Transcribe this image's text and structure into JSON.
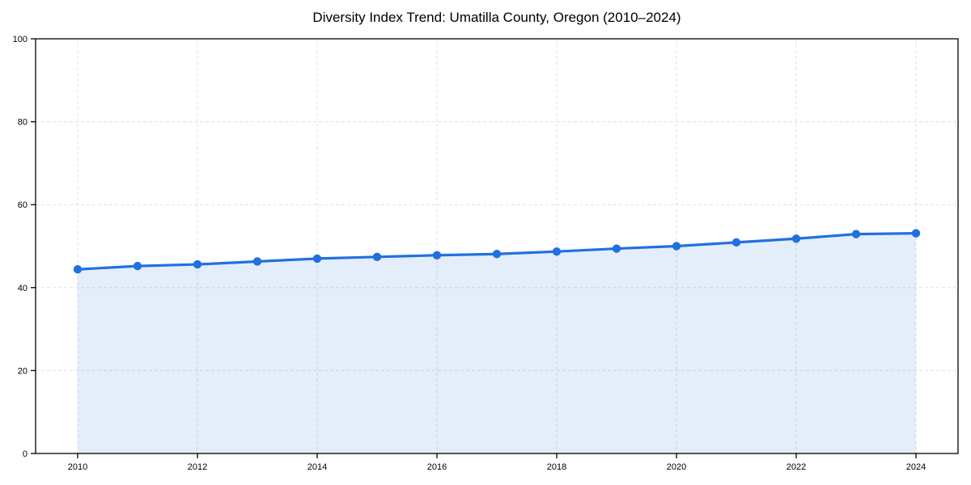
{
  "chart_data": {
    "type": "area",
    "title": "Diversity Index Trend: Umatilla County, Oregon (2010–2024)",
    "x": [
      2010,
      2011,
      2012,
      2013,
      2014,
      2015,
      2016,
      2017,
      2018,
      2019,
      2020,
      2021,
      2022,
      2023,
      2024
    ],
    "values": [
      44.4,
      45.2,
      45.6,
      46.3,
      47.0,
      47.4,
      47.8,
      48.1,
      48.7,
      49.4,
      50.0,
      50.9,
      51.8,
      52.9,
      53.1
    ],
    "xlabel": "",
    "ylabel": "",
    "ylim": [
      0,
      100
    ],
    "xticks": [
      2010,
      2012,
      2014,
      2016,
      2018,
      2020,
      2022,
      2024
    ],
    "yticks": [
      0,
      20,
      40,
      60,
      80,
      100
    ],
    "grid": "dashed",
    "legend": "none",
    "colors": {
      "line": "#2170E0",
      "marker": "#2170E0",
      "fill": "rgba(33,112,224,0.12)",
      "grid": "#E0E0E0",
      "spine": "#000000",
      "tick_text": "#000000"
    }
  }
}
